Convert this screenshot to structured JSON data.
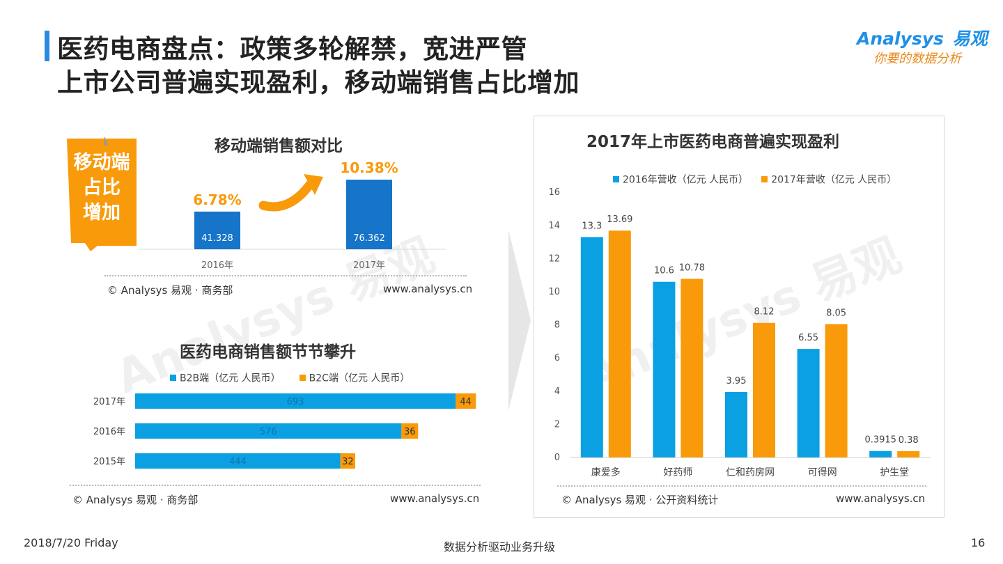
{
  "header": {
    "title_line1": "医药电商盘点：政策多轮解禁，宽进严管",
    "title_line2": "上市公司普遍实现盈利，移动端销售占比增加",
    "logo_en": "Analysys",
    "logo_brand": "易观",
    "logo_slogan": "你要的数据分析"
  },
  "watermark": {
    "text": "Analysys 易观",
    "slogan": "你要的数据分析"
  },
  "badge": {
    "lines": [
      "移动端",
      "占比",
      "增加"
    ]
  },
  "colors": {
    "blue": "#1674c9",
    "b2b": "#0ba0e2",
    "orange": "#f89a0a",
    "accent": "#2b8ae0"
  },
  "chart_data": [
    {
      "type": "bar",
      "title": "移动端销售额对比",
      "categories": [
        "2016年",
        "2017年"
      ],
      "values": [
        41.328,
        76.362
      ],
      "value_labels": [
        "41.328",
        "76.362"
      ],
      "share_labels": [
        "6.78%",
        "10.38%"
      ],
      "grid": false,
      "source": "© Analysys 易观 · 商务部",
      "site": "www.analysys.cn"
    },
    {
      "type": "bar",
      "orientation": "horizontal",
      "stacked": true,
      "title": "医药电商销售额节节攀升",
      "categories": [
        "2017年",
        "2016年",
        "2015年"
      ],
      "series": [
        {
          "name": "B2B端（亿元 人民币）",
          "values": [
            693,
            576,
            444
          ],
          "color": "#0ba0e2"
        },
        {
          "name": "B2C端（亿元 人民币）",
          "values": [
            44,
            36,
            32
          ],
          "color": "#f89a0a"
        }
      ],
      "legend_position": "top",
      "source": "© Analysys 易观 · 商务部",
      "site": "www.analysys.cn"
    },
    {
      "type": "bar",
      "title": "2017年上市医药电商普遍实现盈利",
      "categories": [
        "康爱多",
        "好药师",
        "仁和药房网",
        "可得网",
        "护生堂"
      ],
      "series": [
        {
          "name": "2016年营收（亿元 人民币）",
          "values": [
            13.3,
            10.6,
            3.95,
            6.55,
            0.3915
          ],
          "color": "#0ba0e2"
        },
        {
          "name": "2017年营收（亿元 人民币）",
          "values": [
            13.69,
            10.78,
            8.12,
            8.05,
            0.38
          ],
          "color": "#f89a0a"
        }
      ],
      "y_ticks": [
        0,
        2,
        4,
        6,
        8,
        10,
        12,
        14,
        16
      ],
      "ylim": [
        0,
        16
      ],
      "legend_position": "top",
      "grid": false,
      "source": "© Analysys 易观 · 公开资料统计",
      "site": "www.analysys.cn"
    }
  ],
  "footer": {
    "date": "2018/7/20 Friday",
    "center": "数据分析驱动业务升级",
    "page": "16"
  }
}
